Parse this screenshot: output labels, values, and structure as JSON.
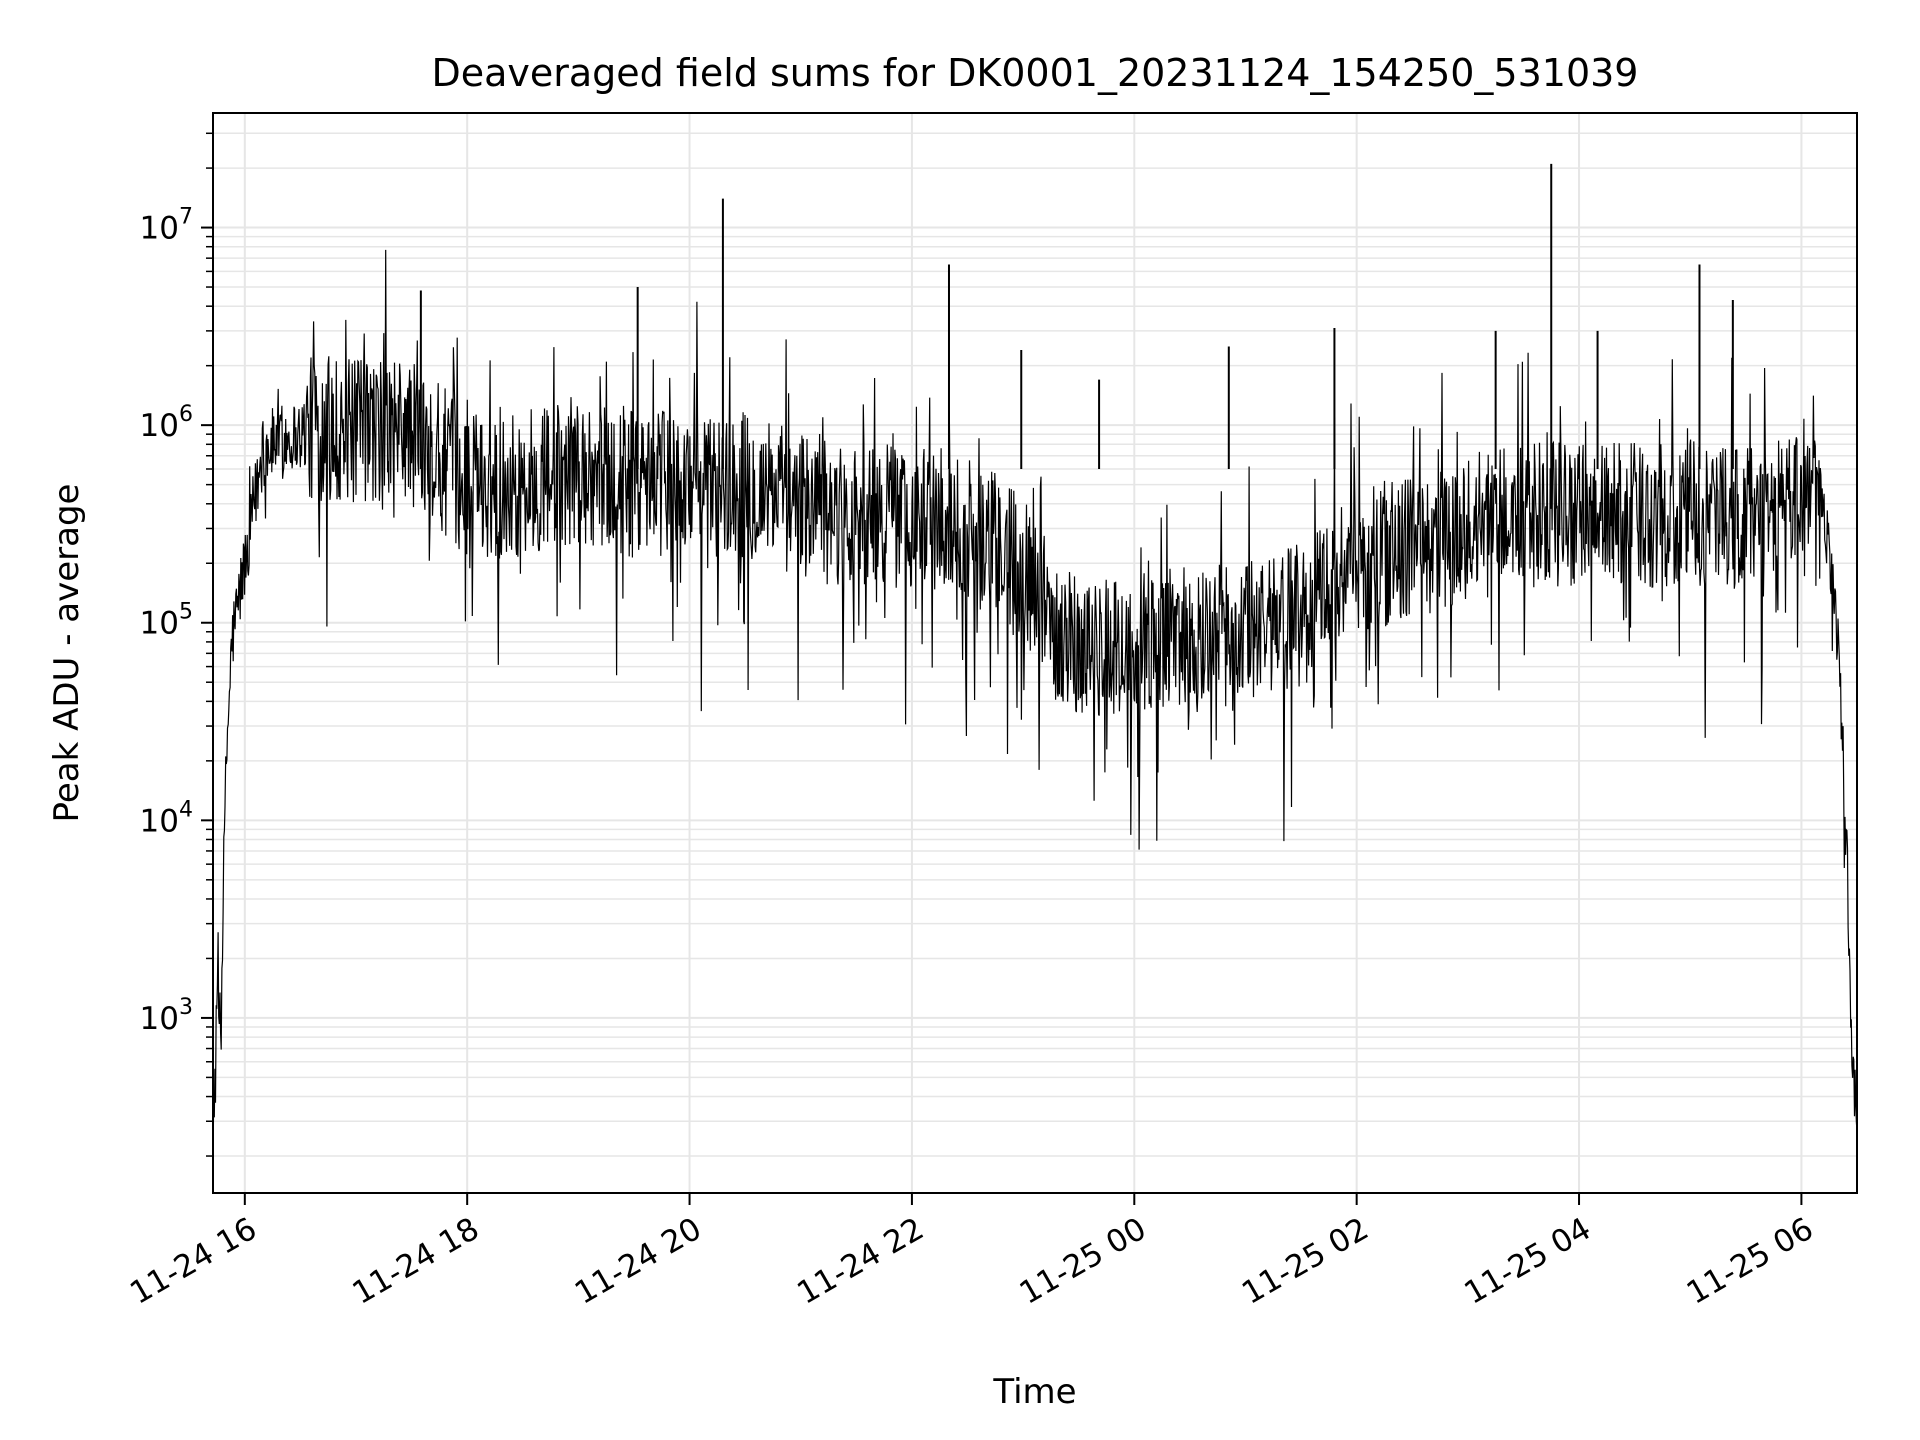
{
  "chart_data": {
    "type": "line",
    "title": "Deaveraged field sums for DK0001_20231124_154250_531039",
    "xlabel": "Time",
    "ylabel": "Peak ADU - average",
    "yscale": "log",
    "xlim": [
      "2023-11-24T15:42:50",
      "2023-11-25T06:30:00"
    ],
    "ylim": [
      130,
      38000000
    ],
    "x_ticks": [
      {
        "t": "2023-11-24T16:00:00",
        "label": "11-24 16"
      },
      {
        "t": "2023-11-24T18:00:00",
        "label": "11-24 18"
      },
      {
        "t": "2023-11-24T20:00:00",
        "label": "11-24 20"
      },
      {
        "t": "2023-11-24T22:00:00",
        "label": "11-24 22"
      },
      {
        "t": "2023-11-25T00:00:00",
        "label": "11-25 00"
      },
      {
        "t": "2023-11-25T02:00:00",
        "label": "11-25 02"
      },
      {
        "t": "2023-11-25T04:00:00",
        "label": "11-25 04"
      },
      {
        "t": "2023-11-25T06:00:00",
        "label": "11-25 06"
      }
    ],
    "y_ticks": [
      {
        "value": 1000,
        "base": "10",
        "exp": "3"
      },
      {
        "value": 10000,
        "base": "10",
        "exp": "4"
      },
      {
        "value": 100000,
        "base": "10",
        "exp": "5"
      },
      {
        "value": 1000000,
        "base": "10",
        "exp": "6"
      },
      {
        "value": 10000000,
        "base": "10",
        "exp": "7"
      }
    ],
    "grid": true,
    "line_color": "#000000",
    "grid_color": "#e6e6e6",
    "series": [
      {
        "x": [
          "2023-11-24T15:42:50",
          "2023-11-24T15:45:00",
          "2023-11-24T15:47:00",
          "2023-11-24T15:50:00",
          "2023-11-24T15:53:00",
          "2023-11-24T15:56:00",
          "2023-11-24T16:00:00",
          "2023-11-24T16:05:00",
          "2023-11-24T16:10:00",
          "2023-11-24T16:15:00",
          "2023-11-24T16:20:00",
          "2023-11-24T16:30:00",
          "2023-11-24T16:45:00",
          "2023-11-24T17:00:00",
          "2023-11-24T17:15:00",
          "2023-11-24T17:30:00",
          "2023-11-24T17:45:00",
          "2023-11-24T18:00:00",
          "2023-11-24T18:30:00",
          "2023-11-24T19:00:00",
          "2023-11-24T19:30:00",
          "2023-11-24T20:00:00",
          "2023-11-24T20:30:00",
          "2023-11-24T21:00:00",
          "2023-11-24T21:30:00",
          "2023-11-24T22:00:00",
          "2023-11-24T22:30:00",
          "2023-11-24T23:00:00",
          "2023-11-24T23:15:00",
          "2023-11-24T23:30:00",
          "2023-11-24T23:45:00",
          "2023-11-25T00:00:00",
          "2023-11-25T00:30:00",
          "2023-11-25T01:00:00",
          "2023-11-25T01:30:00",
          "2023-11-25T01:45:00",
          "2023-11-25T02:00:00",
          "2023-11-25T02:30:00",
          "2023-11-25T03:00:00",
          "2023-11-25T03:30:00",
          "2023-11-25T04:00:00",
          "2023-11-25T04:30:00",
          "2023-11-25T05:00:00",
          "2023-11-25T05:30:00",
          "2023-11-25T06:00:00",
          "2023-11-25T06:05:00",
          "2023-11-25T06:10:00",
          "2023-11-25T06:15:00",
          "2023-11-25T06:20:00",
          "2023-11-25T06:25:00",
          "2023-11-25T06:28:00"
        ],
        "values": [
          300,
          1000,
          1200,
          20000,
          80000,
          120000,
          200000,
          400000,
          750000,
          800000,
          850000,
          900000,
          1000000,
          900000,
          1000000,
          900000,
          700000,
          500000,
          500000,
          600000,
          500000,
          500000,
          500000,
          400000,
          350000,
          350000,
          300000,
          200000,
          100000,
          80000,
          70000,
          80000,
          80000,
          90000,
          110000,
          150000,
          200000,
          250000,
          300000,
          350000,
          350000,
          350000,
          350000,
          350000,
          400000,
          600000,
          500000,
          200000,
          80000,
          5000,
          400
        ]
      }
    ],
    "spikes": [
      {
        "x": "2023-11-24T20:18:00",
        "y": 14000000
      },
      {
        "x": "2023-11-24T22:20:00",
        "y": 6500000
      },
      {
        "x": "2023-11-24T22:59:00",
        "y": 2400000
      },
      {
        "x": "2023-11-24T23:41:00",
        "y": 1700000
      },
      {
        "x": "2023-11-25T00:51:00",
        "y": 2500000
      },
      {
        "x": "2023-11-25T01:48:00",
        "y": 3100000
      },
      {
        "x": "2023-11-25T03:15:00",
        "y": 3000000
      },
      {
        "x": "2023-11-25T03:45:00",
        "y": 21000000
      },
      {
        "x": "2023-11-25T04:10:00",
        "y": 3000000
      },
      {
        "x": "2023-11-25T05:05:00",
        "y": 6500000
      },
      {
        "x": "2023-11-25T05:23:00",
        "y": 4300000
      },
      {
        "x": "2023-11-24T19:32:00",
        "y": 5000000
      },
      {
        "x": "2023-11-24T17:35:00",
        "y": 4800000
      }
    ]
  }
}
